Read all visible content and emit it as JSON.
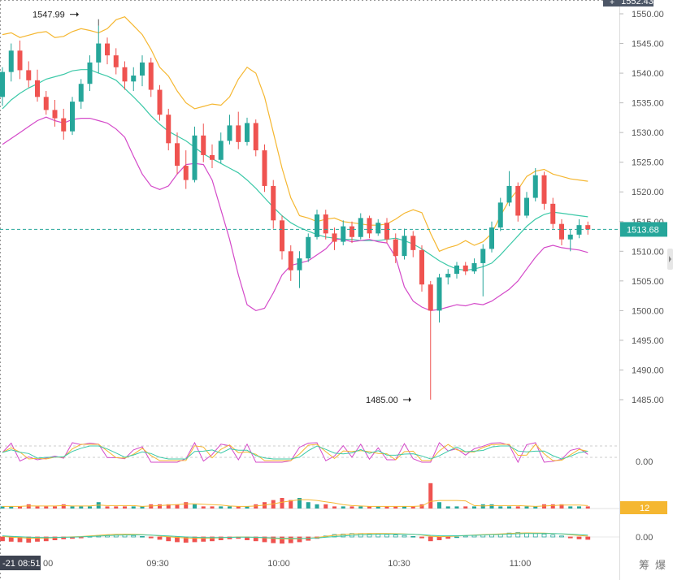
{
  "chart_data": {
    "type": "candlestick",
    "price_axis": {
      "ticks": [
        "1550.00",
        "1545.00",
        "1540.00",
        "1535.00",
        "1530.00",
        "1525.00",
        "1520.00",
        "1515.00",
        "1510.00",
        "1505.00",
        "1500.00",
        "1495.00",
        "1490.00",
        "1485.00"
      ],
      "top_label": "1552.43",
      "range": [
        1480,
        1552.43
      ]
    },
    "time_axis": {
      "ticks": [
        "09:30",
        "10:00",
        "10:30",
        "11:00"
      ],
      "left_label": "-21 08:51",
      "partial_left_tick": "00"
    },
    "last_price": "1513.68",
    "annotations": {
      "high": "1547.99",
      "low": "1485.00"
    },
    "candles": [
      [
        1536.0,
        1541.0,
        1534.5,
        1540.2
      ],
      [
        1540.2,
        1545.0,
        1538.6,
        1543.8
      ],
      [
        1543.8,
        1545.5,
        1539.0,
        1540.5
      ],
      [
        1540.5,
        1542.0,
        1537.6,
        1538.8
      ],
      [
        1538.8,
        1540.6,
        1535.2,
        1536.0
      ],
      [
        1536.0,
        1537.0,
        1533.0,
        1533.8
      ],
      [
        1533.8,
        1535.5,
        1531.0,
        1532.4
      ],
      [
        1532.4,
        1534.0,
        1528.8,
        1530.2
      ],
      [
        1530.2,
        1536.0,
        1529.6,
        1535.2
      ],
      [
        1535.2,
        1539.0,
        1534.0,
        1538.2
      ],
      [
        1538.2,
        1543.0,
        1537.0,
        1541.8
      ],
      [
        1541.8,
        1547.99,
        1540.0,
        1545.0
      ],
      [
        1545.0,
        1546.0,
        1541.5,
        1543.0
      ],
      [
        1543.0,
        1544.2,
        1539.8,
        1541.0
      ],
      [
        1541.0,
        1542.0,
        1537.2,
        1538.6
      ],
      [
        1538.6,
        1541.0,
        1537.0,
        1539.6
      ],
      [
        1539.6,
        1543.0,
        1537.8,
        1541.8
      ],
      [
        1541.8,
        1542.6,
        1536.0,
        1537.2
      ],
      [
        1537.2,
        1538.0,
        1532.0,
        1533.0
      ],
      [
        1533.0,
        1534.0,
        1527.0,
        1528.2
      ],
      [
        1528.2,
        1530.0,
        1523.0,
        1524.4
      ],
      [
        1524.4,
        1527.0,
        1520.5,
        1522.0
      ],
      [
        1522.0,
        1531.0,
        1521.6,
        1529.5
      ],
      [
        1529.5,
        1531.5,
        1525.0,
        1526.2
      ],
      [
        1526.2,
        1528.0,
        1524.0,
        1525.4
      ],
      [
        1525.4,
        1530.0,
        1524.8,
        1528.6
      ],
      [
        1528.6,
        1533.0,
        1528.0,
        1531.2
      ],
      [
        1531.2,
        1533.5,
        1527.2,
        1528.4
      ],
      [
        1528.4,
        1532.5,
        1527.8,
        1531.6
      ],
      [
        1531.6,
        1532.2,
        1526.0,
        1527.0
      ],
      [
        1527.0,
        1528.0,
        1520.0,
        1521.0
      ],
      [
        1521.0,
        1522.0,
        1513.8,
        1515.2
      ],
      [
        1515.2,
        1516.0,
        1508.6,
        1510.0
      ],
      [
        1510.0,
        1511.0,
        1505.0,
        1506.8
      ],
      [
        1506.8,
        1510.0,
        1503.8,
        1508.8
      ],
      [
        1508.8,
        1513.0,
        1508.2,
        1512.4
      ],
      [
        1512.4,
        1517.0,
        1512.0,
        1516.2
      ],
      [
        1516.2,
        1517.0,
        1512.0,
        1513.0
      ],
      [
        1513.0,
        1514.0,
        1510.2,
        1511.6
      ],
      [
        1511.6,
        1515.2,
        1511.0,
        1514.2
      ],
      [
        1514.2,
        1515.0,
        1511.4,
        1512.4
      ],
      [
        1512.4,
        1516.4,
        1512.0,
        1515.6
      ],
      [
        1515.6,
        1516.0,
        1512.2,
        1513.0
      ],
      [
        1513.0,
        1515.4,
        1512.6,
        1514.8
      ],
      [
        1514.8,
        1515.6,
        1511.4,
        1512.0
      ],
      [
        1512.0,
        1513.0,
        1508.0,
        1509.2
      ],
      [
        1509.2,
        1513.8,
        1508.6,
        1512.6
      ],
      [
        1512.6,
        1513.4,
        1509.0,
        1510.2
      ],
      [
        1510.2,
        1511.0,
        1503.2,
        1504.4
      ],
      [
        1504.4,
        1505.0,
        1485.0,
        1500.0
      ],
      [
        1500.0,
        1506.2,
        1498.0,
        1505.6
      ],
      [
        1505.6,
        1507.0,
        1504.4,
        1506.2
      ],
      [
        1506.2,
        1508.2,
        1505.4,
        1507.6
      ],
      [
        1507.6,
        1508.2,
        1506.0,
        1506.6
      ],
      [
        1506.6,
        1508.8,
        1506.2,
        1508.0
      ],
      [
        1508.0,
        1511.2,
        1502.4,
        1510.4
      ],
      [
        1510.4,
        1515.0,
        1509.8,
        1514.0
      ],
      [
        1514.0,
        1519.0,
        1513.4,
        1518.2
      ],
      [
        1518.2,
        1523.5,
        1517.6,
        1521.0
      ],
      [
        1521.0,
        1521.6,
        1515.0,
        1516.0
      ],
      [
        1516.0,
        1520.0,
        1515.6,
        1519.0
      ],
      [
        1519.0,
        1524.0,
        1518.4,
        1522.8
      ],
      [
        1522.8,
        1523.4,
        1517.0,
        1518.0
      ],
      [
        1518.0,
        1519.0,
        1513.8,
        1514.6
      ],
      [
        1514.6,
        1515.4,
        1511.0,
        1512.0
      ],
      [
        1512.0,
        1513.6,
        1510.0,
        1512.8
      ],
      [
        1512.8,
        1515.4,
        1512.2,
        1514.4
      ],
      [
        1514.4,
        1515.0,
        1512.8,
        1513.68
      ]
    ],
    "bollinger_upper": [
      1546.5,
      1546.8,
      1546.0,
      1546.4,
      1546.8,
      1547.0,
      1546.0,
      1546.2,
      1547.0,
      1547.5,
      1547.2,
      1546.8,
      1547.5,
      1549.0,
      1549.5,
      1548.0,
      1546.5,
      1544.0,
      1541.0,
      1539.5,
      1537.0,
      1535.0,
      1534.0,
      1534.4,
      1534.8,
      1534.6,
      1536.0,
      1539.0,
      1541.0,
      1540.0,
      1536.0,
      1530.0,
      1524.0,
      1519.0,
      1516.0,
      1515.6,
      1515.0,
      1515.4,
      1515.6,
      1515.0,
      1514.8,
      1514.6,
      1514.4,
      1514.4,
      1514.6,
      1515.4,
      1516.4,
      1517.0,
      1516.5,
      1513.0,
      1510.0,
      1510.6,
      1511.0,
      1511.8,
      1511.0,
      1511.6,
      1513.0,
      1516.0,
      1518.6,
      1520.4,
      1522.6,
      1523.5,
      1523.8,
      1523.0,
      1522.6,
      1522.2,
      1522.0,
      1521.8
    ],
    "bollinger_mid": [
      1534.0,
      1535.5,
      1536.6,
      1537.5,
      1538.2,
      1539.0,
      1539.4,
      1539.8,
      1540.4,
      1540.6,
      1540.6,
      1540.0,
      1539.5,
      1538.8,
      1537.4,
      1536.0,
      1534.5,
      1532.8,
      1531.4,
      1530.2,
      1529.4,
      1528.6,
      1527.5,
      1526.4,
      1525.6,
      1524.8,
      1524.0,
      1523.2,
      1522.0,
      1520.6,
      1519.0,
      1517.4,
      1516.0,
      1514.8,
      1514.0,
      1513.4,
      1512.8,
      1512.4,
      1512.2,
      1512.0,
      1512.0,
      1511.8,
      1511.8,
      1511.8,
      1512.0,
      1512.2,
      1511.8,
      1511.2,
      1510.4,
      1509.4,
      1508.4,
      1507.6,
      1507.0,
      1506.8,
      1507.0,
      1507.4,
      1508.0,
      1509.4,
      1511.0,
      1512.6,
      1514.2,
      1515.4,
      1516.2,
      1516.6,
      1516.4,
      1516.2,
      1516.0,
      1515.8
    ],
    "bollinger_lower": [
      1528.0,
      1529.0,
      1530.0,
      1531.0,
      1532.0,
      1532.6,
      1532.0,
      1531.6,
      1532.2,
      1532.4,
      1532.4,
      1532.0,
      1531.6,
      1530.6,
      1529.2,
      1526.0,
      1523.0,
      1521.0,
      1520.4,
      1521.0,
      1523.0,
      1524.6,
      1524.8,
      1524.6,
      1522.0,
      1517.0,
      1512.0,
      1506.0,
      1501.0,
      1500.0,
      1500.4,
      1503.0,
      1506.0,
      1507.6,
      1508.0,
      1508.4,
      1509.4,
      1510.4,
      1512.0,
      1512.0,
      1511.6,
      1511.8,
      1512.0,
      1511.6,
      1511.4,
      1509.0,
      1504.0,
      1501.6,
      1500.6,
      1500.0,
      1500.2,
      1500.6,
      1501.0,
      1500.8,
      1501.2,
      1501.0,
      1501.6,
      1502.6,
      1503.6,
      1505.0,
      1507.0,
      1509.0,
      1510.6,
      1511.0,
      1510.6,
      1510.4,
      1510.2,
      1509.8
    ],
    "panels": [
      {
        "name": "oscillator",
        "label": "0.00"
      },
      {
        "name": "volume",
        "label": "12"
      },
      {
        "name": "macd",
        "label": "0.00"
      }
    ],
    "volume": [
      1,
      1,
      1,
      2,
      1,
      1,
      1,
      2,
      1,
      1,
      1,
      3,
      1,
      1,
      1,
      1,
      1,
      2,
      2,
      2,
      2,
      3,
      2,
      1,
      1,
      1,
      1,
      1,
      1,
      2,
      3,
      4,
      5,
      4,
      5,
      3,
      2,
      2,
      1,
      1,
      1,
      1,
      1,
      1,
      1,
      1,
      1,
      1,
      2,
      12,
      3,
      1,
      1,
      1,
      1,
      2,
      2,
      1,
      1,
      1,
      1,
      1,
      2,
      2,
      2,
      1,
      1,
      1
    ],
    "macd_hist": [
      -0.8,
      -0.9,
      -1.0,
      -1.1,
      -0.9,
      -0.8,
      -0.6,
      -0.4,
      -0.3,
      -0.2,
      0.1,
      0.3,
      0.4,
      0.5,
      0.4,
      0.3,
      0.1,
      -0.2,
      -0.5,
      -0.8,
      -1.0,
      -1.1,
      -1.0,
      -0.9,
      -0.8,
      -0.6,
      -0.4,
      -0.3,
      -0.6,
      -0.8,
      -1.0,
      -1.2,
      -1.3,
      -1.2,
      -1.0,
      -0.7,
      -0.3,
      0.2,
      0.5,
      0.6,
      0.7,
      0.7,
      0.6,
      0.6,
      0.5,
      0.4,
      0.3,
      0.1,
      -0.2,
      -0.8,
      -0.6,
      -0.3,
      0.0,
      0.2,
      0.3,
      0.4,
      0.5,
      0.6,
      0.8,
      0.9,
      0.8,
      0.7,
      0.6,
      0.4,
      0.2,
      -0.2,
      -0.4,
      -0.5
    ]
  }
}
